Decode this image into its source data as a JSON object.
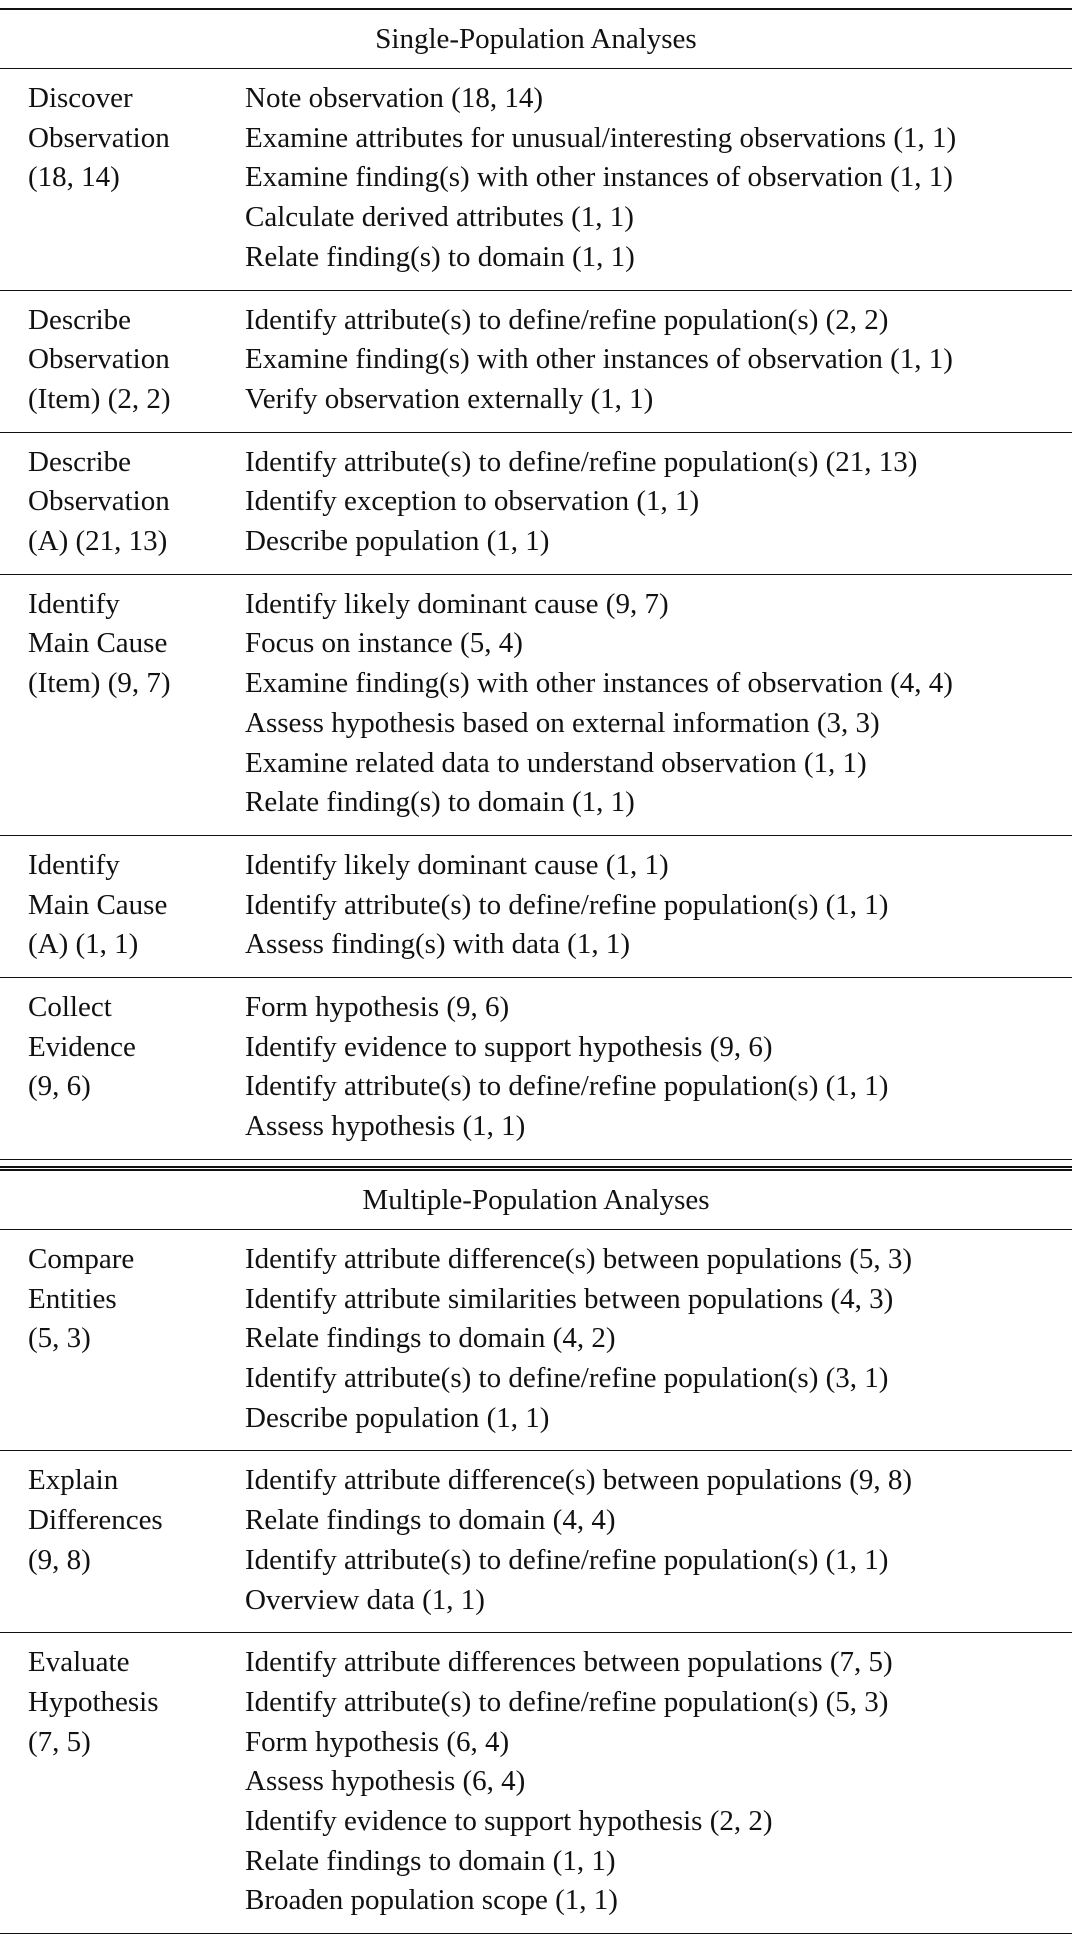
{
  "sections": [
    {
      "title": "Single-Population Analyses",
      "groups": [
        {
          "label_lines": [
            "Discover",
            "Observation",
            "(18, 14)"
          ],
          "items": [
            "Note observation (18, 14)",
            "Examine attributes for unusual/interesting observations (1, 1)",
            "Examine finding(s) with other instances of observation (1, 1)",
            "Calculate derived attributes (1, 1)",
            "Relate finding(s) to domain (1, 1)"
          ]
        },
        {
          "label_lines": [
            "Describe",
            "Observation",
            "(Item) (2, 2)"
          ],
          "items": [
            "Identify attribute(s) to define/refine population(s) (2, 2)",
            "Examine finding(s) with other instances of observation (1, 1)",
            "Verify observation externally (1, 1)"
          ]
        },
        {
          "label_lines": [
            "Describe",
            "Observation",
            "(A) (21, 13)"
          ],
          "items": [
            "Identify attribute(s) to define/refine population(s) (21, 13)",
            "Identify exception to observation (1, 1)",
            "Describe population (1, 1)"
          ]
        },
        {
          "label_lines": [
            "Identify",
            "Main Cause",
            "(Item) (9, 7)"
          ],
          "items": [
            "Identify likely dominant cause (9, 7)",
            "Focus on instance (5, 4)",
            "Examine finding(s) with other instances of observation (4, 4)",
            "Assess hypothesis based on external information (3, 3)",
            "Examine related data to understand observation (1, 1)",
            "Relate finding(s) to domain (1, 1)"
          ]
        },
        {
          "label_lines": [
            "Identify",
            "Main Cause",
            "(A) (1, 1)"
          ],
          "items": [
            "Identify likely dominant cause (1, 1)",
            "Identify attribute(s) to define/refine population(s) (1, 1)",
            "Assess finding(s) with data (1, 1)"
          ]
        },
        {
          "label_lines": [
            "Collect",
            "Evidence",
            "(9, 6)"
          ],
          "items": [
            "Form hypothesis (9, 6)",
            "Identify evidence to support hypothesis (9, 6)",
            "Identify attribute(s) to define/refine population(s) (1, 1)",
            "Assess hypothesis (1, 1)"
          ]
        }
      ]
    },
    {
      "title": "Multiple-Population Analyses",
      "groups": [
        {
          "label_lines": [
            "Compare",
            "Entities",
            "(5, 3)"
          ],
          "items": [
            "Identify attribute difference(s) between populations (5, 3)",
            "Identify attribute similarities between populations (4, 3)",
            "Relate findings to domain (4, 2)",
            "Identify attribute(s) to define/refine population(s) (3, 1)",
            "Describe population (1, 1)"
          ]
        },
        {
          "label_lines": [
            "Explain",
            "Differences",
            "(9, 8)"
          ],
          "items": [
            "Identify attribute difference(s) between populations (9, 8)",
            "Relate findings to domain (4, 4)",
            "Identify attribute(s) to define/refine population(s) (1, 1)",
            "Overview data (1, 1)"
          ]
        },
        {
          "label_lines": [
            "Evaluate",
            "Hypothesis",
            "(7, 5)"
          ],
          "items": [
            "Identify attribute differences between populations (7, 5)",
            "Identify attribute(s) to define/refine population(s) (5, 3)",
            "Form hypothesis (6, 4)",
            "Assess hypothesis (6, 4)",
            "Identify evidence to support hypothesis (2, 2)",
            "Relate findings to domain (1, 1)",
            "Broaden population scope (1, 1)"
          ]
        }
      ]
    }
  ]
}
